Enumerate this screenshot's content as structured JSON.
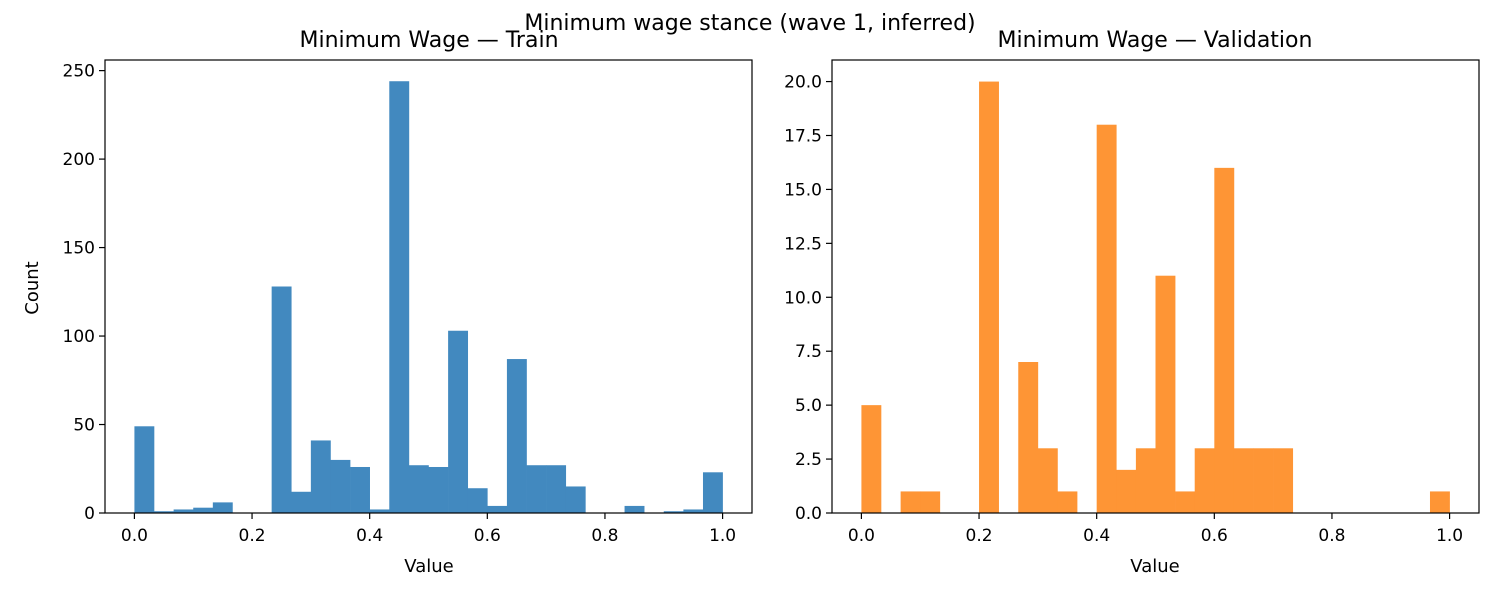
{
  "figure": {
    "suptitle": "Minimum wage stance (wave 1, inferred)"
  },
  "chart_data": [
    {
      "type": "bar",
      "title": "Minimum Wage — Train",
      "xlabel": "Value",
      "ylabel": "Count",
      "color": "#4289bf",
      "bin_range": [
        0.0,
        1.0
      ],
      "bin_width": 0.0333,
      "values": [
        49,
        1,
        2,
        3,
        6,
        0,
        0,
        128,
        12,
        41,
        30,
        26,
        2,
        244,
        27,
        26,
        103,
        14,
        4,
        87,
        27,
        27,
        15,
        0,
        0,
        4,
        0,
        1,
        2,
        23
      ],
      "xlim": [
        -0.05,
        1.05
      ],
      "ylim": [
        0,
        256
      ],
      "xticks": [
        0.0,
        0.2,
        0.4,
        0.6,
        0.8,
        1.0
      ],
      "xtick_labels": [
        "0.0",
        "0.2",
        "0.4",
        "0.6",
        "0.8",
        "1.0"
      ],
      "yticks": [
        0,
        50,
        100,
        150,
        200,
        250
      ],
      "ytick_labels": [
        "0",
        "50",
        "100",
        "150",
        "200",
        "250"
      ],
      "grid": false
    },
    {
      "type": "bar",
      "title": "Minimum Wage — Validation",
      "xlabel": "Value",
      "ylabel": "",
      "color": "#fe9535",
      "bin_range": [
        0.0,
        1.0
      ],
      "bin_width": 0.0333,
      "values": [
        5,
        0,
        1,
        1,
        0,
        0,
        20,
        0,
        7,
        3,
        1,
        0,
        18,
        2,
        3,
        11,
        1,
        3,
        16,
        3,
        3,
        3,
        0,
        0,
        0,
        0,
        0,
        0,
        0,
        1
      ],
      "xlim": [
        -0.05,
        1.05
      ],
      "ylim": [
        0,
        21
      ],
      "xticks": [
        0.0,
        0.2,
        0.4,
        0.6,
        0.8,
        1.0
      ],
      "xtick_labels": [
        "0.0",
        "0.2",
        "0.4",
        "0.6",
        "0.8",
        "1.0"
      ],
      "yticks": [
        0,
        2.5,
        5,
        7.5,
        10,
        12.5,
        15,
        17.5,
        20
      ],
      "ytick_labels": [
        "0.0",
        "2.5",
        "5.0",
        "7.5",
        "10.0",
        "12.5",
        "15.0",
        "17.5",
        "20.0"
      ],
      "grid": false
    }
  ]
}
